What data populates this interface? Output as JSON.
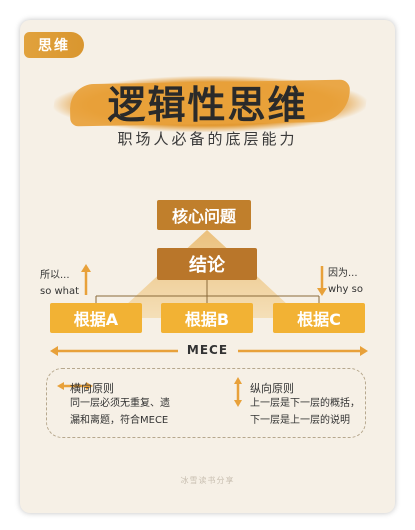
{
  "tag": "思维",
  "title": "逻辑性思维",
  "subtitle": "职场人必备的底层能力",
  "diagram": {
    "core": "核心问题",
    "conclusion": "结论",
    "basis": [
      "根据A",
      "根据B",
      "根据C"
    ],
    "left_label": [
      "所以...",
      "so what"
    ],
    "right_label": [
      "因为...",
      "why so"
    ],
    "mece": "MECE"
  },
  "legend": {
    "horizontal_title": "横向原则",
    "horizontal_text": [
      "同一层必须无重复、遗",
      "漏和离题，符合MECE"
    ],
    "vertical_title": "纵向原则",
    "vertical_text": [
      "上一层是下一层的概括，",
      "下一层是上一层的说明"
    ]
  },
  "footer": "冰雪读书分享",
  "colors": {
    "accent": "#e8a13a",
    "core_box": "#c07f2c",
    "conclusion_box": "#b9762a",
    "basis_box": "#f2b234",
    "arrow": "#e8a13a"
  }
}
